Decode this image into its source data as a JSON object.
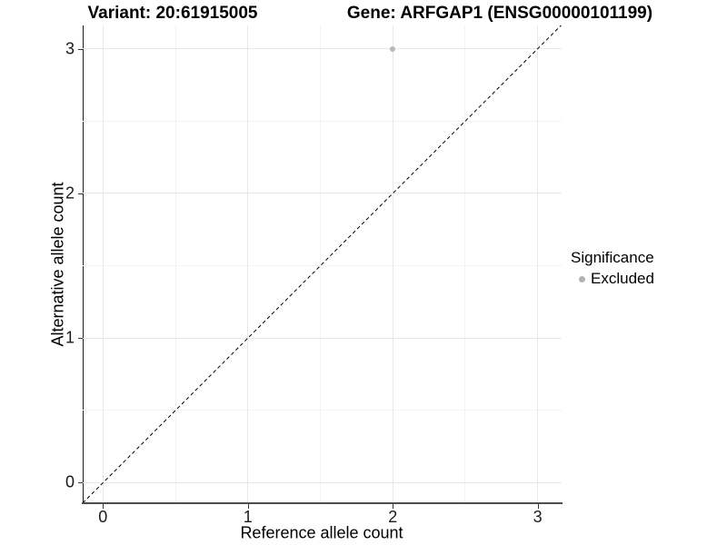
{
  "titles": {
    "variant": "Variant: 20:61915005",
    "gene": "Gene: ARFGAP1 (ENSG00000101199)"
  },
  "chart_data": {
    "type": "scatter",
    "title_left": "Variant: 20:61915005",
    "title_right": "Gene: ARFGAP1 (ENSG00000101199)",
    "xlabel": "Reference allele count",
    "ylabel": "Alternative allele count",
    "xlim": [
      -0.14,
      3.165
    ],
    "ylim": [
      -0.135,
      3.161
    ],
    "xticks": [
      0,
      1,
      2,
      3
    ],
    "yticks": [
      0,
      1,
      2,
      3
    ],
    "xminor": [
      0.5,
      1.5,
      2.5
    ],
    "yminor": [
      0.5,
      1.5,
      2.5
    ],
    "grid": "major+minor",
    "points": [
      {
        "x": 2,
        "y": 3,
        "series": "Excluded"
      }
    ],
    "identity_line": {
      "style": "dashed",
      "from": [
        -0.14,
        -0.14
      ],
      "to": [
        3.165,
        3.165
      ],
      "color": "#000000"
    },
    "legend": {
      "position": "right",
      "title": "Significance",
      "entries": [
        {
          "label": "Excluded",
          "color": "#b3b3b3"
        }
      ]
    },
    "colors": {
      "point": "#b9b9b9",
      "grid_major": "#e7e7e7",
      "grid_minor": "#f2f2f2",
      "axis": "#1a1a1a"
    }
  }
}
